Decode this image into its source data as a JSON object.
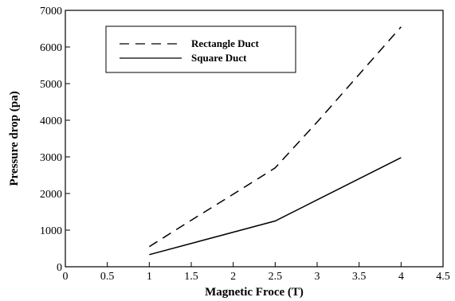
{
  "chart_data": {
    "type": "line",
    "xlabel": "Magnetic Froce (T)",
    "ylabel": "Pressure drop (pa)",
    "xlim": [
      0,
      4.5
    ],
    "ylim": [
      0,
      7000
    ],
    "x_ticks": [
      "0",
      "0.5",
      "1",
      "1.5",
      "2",
      "2.5",
      "3",
      "3.5",
      "4",
      "4.5"
    ],
    "y_ticks": [
      "0",
      "1000",
      "2000",
      "3000",
      "4000",
      "5000",
      "6000",
      "7000"
    ],
    "grid": false,
    "legend_position": "top-left",
    "series": [
      {
        "name": "Rectangle Duct",
        "style": "dashed",
        "color": "#000000",
        "x": [
          1,
          1.5,
          2,
          2.5,
          3,
          3.5,
          4
        ],
        "y": [
          550,
          1270,
          1980,
          2700,
          3950,
          5250,
          6550
        ]
      },
      {
        "name": "Square Duct",
        "style": "solid",
        "color": "#000000",
        "x": [
          1,
          2.5,
          4
        ],
        "y": [
          330,
          1250,
          2980
        ]
      }
    ]
  }
}
